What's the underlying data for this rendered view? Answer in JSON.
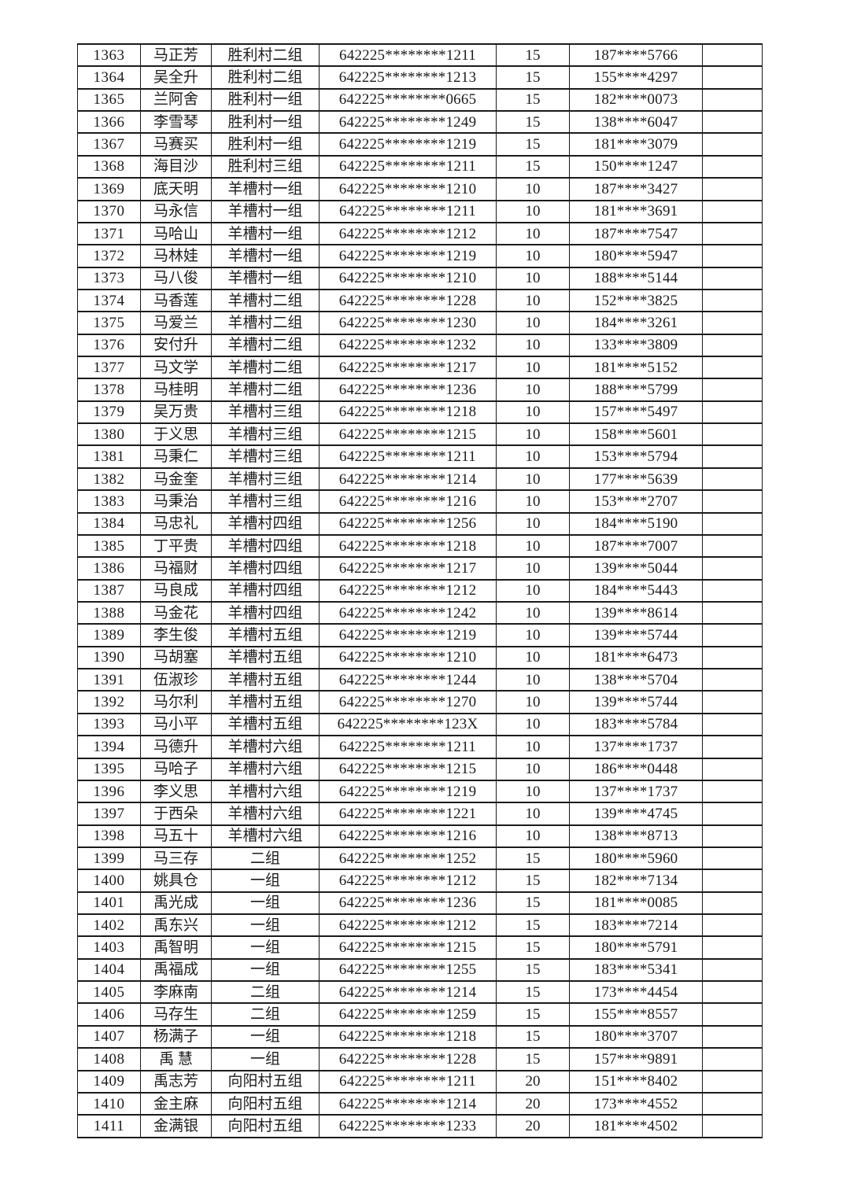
{
  "colors": {
    "background": "#ffffff",
    "text": "#1c1c1c",
    "border": "#1b1b1b"
  },
  "table": {
    "rows": [
      {
        "no": "1363",
        "name": "马正芳",
        "group": "胜利村二组",
        "id": "642225********1211",
        "qty": "15",
        "phone": "187****5766",
        "blank": ""
      },
      {
        "no": "1364",
        "name": "吴全升",
        "group": "胜利村二组",
        "id": "642225********1213",
        "qty": "15",
        "phone": "155****4297",
        "blank": ""
      },
      {
        "no": "1365",
        "name": "兰阿舍",
        "group": "胜利村一组",
        "id": "642225********0665",
        "qty": "15",
        "phone": "182****0073",
        "blank": ""
      },
      {
        "no": "1366",
        "name": "李雪琴",
        "group": "胜利村一组",
        "id": "642225********1249",
        "qty": "15",
        "phone": "138****6047",
        "blank": ""
      },
      {
        "no": "1367",
        "name": "马赛买",
        "group": "胜利村一组",
        "id": "642225********1219",
        "qty": "15",
        "phone": "181****3079",
        "blank": ""
      },
      {
        "no": "1368",
        "name": "海目沙",
        "group": "胜利村三组",
        "id": "642225********1211",
        "qty": "15",
        "phone": "150****1247",
        "blank": ""
      },
      {
        "no": "1369",
        "name": "底天明",
        "group": "羊槽村一组",
        "id": "642225********1210",
        "qty": "10",
        "phone": "187****3427",
        "blank": ""
      },
      {
        "no": "1370",
        "name": "马永信",
        "group": "羊槽村一组",
        "id": "642225********1211",
        "qty": "10",
        "phone": "181****3691",
        "blank": ""
      },
      {
        "no": "1371",
        "name": "马哈山",
        "group": "羊槽村一组",
        "id": "642225********1212",
        "qty": "10",
        "phone": "187****7547",
        "blank": ""
      },
      {
        "no": "1372",
        "name": "马林娃",
        "group": "羊槽村一组",
        "id": "642225********1219",
        "qty": "10",
        "phone": "180****5947",
        "blank": ""
      },
      {
        "no": "1373",
        "name": "马八俊",
        "group": "羊槽村一组",
        "id": "642225********1210",
        "qty": "10",
        "phone": "188****5144",
        "blank": ""
      },
      {
        "no": "1374",
        "name": "马香莲",
        "group": "羊槽村二组",
        "id": "642225********1228",
        "qty": "10",
        "phone": "152****3825",
        "blank": ""
      },
      {
        "no": "1375",
        "name": "马爱兰",
        "group": "羊槽村二组",
        "id": "642225********1230",
        "qty": "10",
        "phone": "184****3261",
        "blank": ""
      },
      {
        "no": "1376",
        "name": "安付升",
        "group": "羊槽村二组",
        "id": "642225********1232",
        "qty": "10",
        "phone": "133****3809",
        "blank": ""
      },
      {
        "no": "1377",
        "name": "马文学",
        "group": "羊槽村二组",
        "id": "642225********1217",
        "qty": "10",
        "phone": "181****5152",
        "blank": ""
      },
      {
        "no": "1378",
        "name": "马桂明",
        "group": "羊槽村二组",
        "id": "642225********1236",
        "qty": "10",
        "phone": "188****5799",
        "blank": ""
      },
      {
        "no": "1379",
        "name": "吴万贵",
        "group": "羊槽村三组",
        "id": "642225********1218",
        "qty": "10",
        "phone": "157****5497",
        "blank": ""
      },
      {
        "no": "1380",
        "name": "于义思",
        "group": "羊槽村三组",
        "id": "642225********1215",
        "qty": "10",
        "phone": "158****5601",
        "blank": ""
      },
      {
        "no": "1381",
        "name": "马秉仁",
        "group": "羊槽村三组",
        "id": "642225********1211",
        "qty": "10",
        "phone": "153****5794",
        "blank": ""
      },
      {
        "no": "1382",
        "name": "马金奎",
        "group": "羊槽村三组",
        "id": "642225********1214",
        "qty": "10",
        "phone": "177****5639",
        "blank": ""
      },
      {
        "no": "1383",
        "name": "马秉治",
        "group": "羊槽村三组",
        "id": "642225********1216",
        "qty": "10",
        "phone": "153****2707",
        "blank": ""
      },
      {
        "no": "1384",
        "name": "马忠礼",
        "group": "羊槽村四组",
        "id": "642225********1256",
        "qty": "10",
        "phone": "184****5190",
        "blank": ""
      },
      {
        "no": "1385",
        "name": "丁平贵",
        "group": "羊槽村四组",
        "id": "642225********1218",
        "qty": "10",
        "phone": "187****7007",
        "blank": ""
      },
      {
        "no": "1386",
        "name": "马福财",
        "group": "羊槽村四组",
        "id": "642225********1217",
        "qty": "10",
        "phone": "139****5044",
        "blank": ""
      },
      {
        "no": "1387",
        "name": "马良成",
        "group": "羊槽村四组",
        "id": "642225********1212",
        "qty": "10",
        "phone": "184****5443",
        "blank": ""
      },
      {
        "no": "1388",
        "name": "马金花",
        "group": "羊槽村四组",
        "id": "642225********1242",
        "qty": "10",
        "phone": "139****8614",
        "blank": ""
      },
      {
        "no": "1389",
        "name": "李生俊",
        "group": "羊槽村五组",
        "id": "642225********1219",
        "qty": "10",
        "phone": "139****5744",
        "blank": ""
      },
      {
        "no": "1390",
        "name": "马胡塞",
        "group": "羊槽村五组",
        "id": "642225********1210",
        "qty": "10",
        "phone": "181****6473",
        "blank": ""
      },
      {
        "no": "1391",
        "name": "伍淑珍",
        "group": "羊槽村五组",
        "id": "642225********1244",
        "qty": "10",
        "phone": "138****5704",
        "blank": ""
      },
      {
        "no": "1392",
        "name": "马尔利",
        "group": "羊槽村五组",
        "id": "642225********1270",
        "qty": "10",
        "phone": "139****5744",
        "blank": ""
      },
      {
        "no": "1393",
        "name": "马小平",
        "group": "羊槽村五组",
        "id": "642225********123X",
        "qty": "10",
        "phone": "183****5784",
        "blank": ""
      },
      {
        "no": "1394",
        "name": "马德升",
        "group": "羊槽村六组",
        "id": "642225********1211",
        "qty": "10",
        "phone": "137****1737",
        "blank": ""
      },
      {
        "no": "1395",
        "name": "马哈子",
        "group": "羊槽村六组",
        "id": "642225********1215",
        "qty": "10",
        "phone": "186****0448",
        "blank": ""
      },
      {
        "no": "1396",
        "name": "李义思",
        "group": "羊槽村六组",
        "id": "642225********1219",
        "qty": "10",
        "phone": "137****1737",
        "blank": ""
      },
      {
        "no": "1397",
        "name": "于西朵",
        "group": "羊槽村六组",
        "id": "642225********1221",
        "qty": "10",
        "phone": "139****4745",
        "blank": ""
      },
      {
        "no": "1398",
        "name": "马五十",
        "group": "羊槽村六组",
        "id": "642225********1216",
        "qty": "10",
        "phone": "138****8713",
        "blank": ""
      },
      {
        "no": "1399",
        "name": "马三存",
        "group": "二组",
        "id": "642225********1252",
        "qty": "15",
        "phone": "180****5960",
        "blank": ""
      },
      {
        "no": "1400",
        "name": "姚具仓",
        "group": "一组",
        "id": "642225********1212",
        "qty": "15",
        "phone": "182****7134",
        "blank": ""
      },
      {
        "no": "1401",
        "name": "禹光成",
        "group": "一组",
        "id": "642225********1236",
        "qty": "15",
        "phone": "181****0085",
        "blank": ""
      },
      {
        "no": "1402",
        "name": "禹东兴",
        "group": "一组",
        "id": "642225********1212",
        "qty": "15",
        "phone": "183****7214",
        "blank": ""
      },
      {
        "no": "1403",
        "name": "禹智明",
        "group": "一组",
        "id": "642225********1215",
        "qty": "15",
        "phone": "180****5791",
        "blank": ""
      },
      {
        "no": "1404",
        "name": "禹福成",
        "group": "一组",
        "id": "642225********1255",
        "qty": "15",
        "phone": "183****5341",
        "blank": ""
      },
      {
        "no": "1405",
        "name": "李麻南",
        "group": "二组",
        "id": "642225********1214",
        "qty": "15",
        "phone": "173****4454",
        "blank": ""
      },
      {
        "no": "1406",
        "name": "马存生",
        "group": "二组",
        "id": "642225********1259",
        "qty": "15",
        "phone": "155****8557",
        "blank": ""
      },
      {
        "no": "1407",
        "name": "杨满子",
        "group": "一组",
        "id": "642225********1218",
        "qty": "15",
        "phone": "180****3707",
        "blank": ""
      },
      {
        "no": "1408",
        "name": "禹 慧",
        "group": "一组",
        "id": "642225********1228",
        "qty": "15",
        "phone": "157****9891",
        "blank": ""
      },
      {
        "no": "1409",
        "name": "禹志芳",
        "group": "向阳村五组",
        "id": "642225********1211",
        "qty": "20",
        "phone": "151****8402",
        "blank": ""
      },
      {
        "no": "1410",
        "name": "金主麻",
        "group": "向阳村五组",
        "id": "642225********1214",
        "qty": "20",
        "phone": "173****4552",
        "blank": ""
      },
      {
        "no": "1411",
        "name": "金满银",
        "group": "向阳村五组",
        "id": "642225********1233",
        "qty": "20",
        "phone": "181****4502",
        "blank": ""
      }
    ]
  }
}
